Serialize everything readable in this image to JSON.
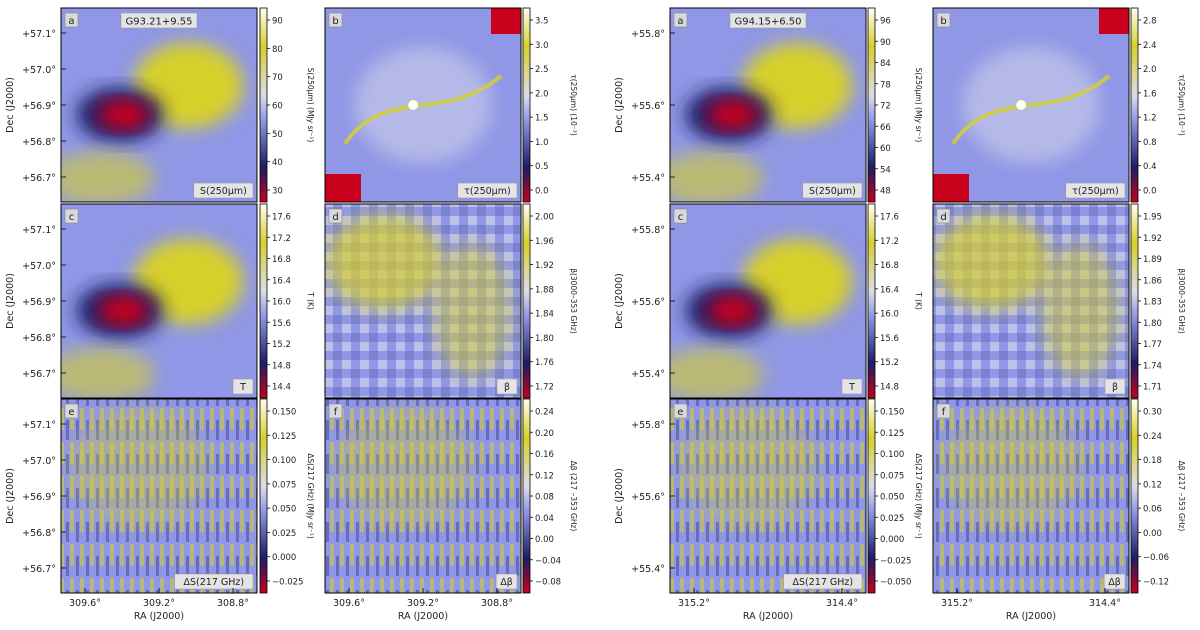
{
  "colors": {
    "low": "#c8001c",
    "dark": "#1a1d66",
    "mid": "#8f97e6",
    "pale": "#dcdcea",
    "high": "#d7d02a",
    "top": "#fffff2"
  },
  "chart_data": [
    {
      "type": "heatmap",
      "field": "G93.21+9.55",
      "xlabel": "RA (J2000)",
      "xticks": [
        "309.6°",
        "309.2°",
        "308.8°"
      ],
      "ylabel": "Dec (J2000)",
      "yticks": [
        "+57.1°",
        "+57.0°",
        "+56.9°",
        "+56.8°",
        "+56.7°"
      ],
      "panels": [
        {
          "letter": "a",
          "tag": "S(250μm)",
          "cbar_label": "S(250μm) (MJy sr⁻¹)",
          "cbar_ticks": [
            "90",
            "80",
            "70",
            "60",
            "50",
            "40",
            "30"
          ],
          "pattern": "blobs"
        },
        {
          "letter": "b",
          "tag": "τ(250μm)",
          "cbar_label": "τ(250μm) (10⁻³)",
          "cbar_ticks": [
            "3.5",
            "3.0",
            "2.5",
            "2.0",
            "1.5",
            "1.0",
            "0.5",
            "0.0"
          ],
          "pattern": "filament"
        },
        {
          "letter": "c",
          "tag": "T",
          "cbar_label": "T (K)",
          "cbar_ticks": [
            "17.6",
            "17.2",
            "16.8",
            "16.4",
            "16.0",
            "15.6",
            "15.2",
            "14.8",
            "14.4"
          ],
          "pattern": "blobs"
        },
        {
          "letter": "d",
          "tag": "β",
          "cbar_label": "β(3000–353 GHz)",
          "cbar_ticks": [
            "2.00",
            "1.96",
            "1.92",
            "1.88",
            "1.84",
            "1.80",
            "1.76",
            "1.72"
          ],
          "pattern": "blocky"
        },
        {
          "letter": "e",
          "tag": "ΔS(217 GHz)",
          "cbar_label": "ΔS(217 GHz) (MJy sr⁻¹)",
          "cbar_ticks": [
            "0.150",
            "0.125",
            "0.100",
            "0.075",
            "0.050",
            "0.025",
            "0.000",
            "−0.025"
          ],
          "pattern": "stripes"
        },
        {
          "letter": "f",
          "tag": "Δβ",
          "cbar_label": "Δβ (217 –353 GHz)",
          "cbar_ticks": [
            "0.24",
            "0.20",
            "0.16",
            "0.12",
            "0.08",
            "0.04",
            "0.00",
            "−0.04",
            "−0.08"
          ],
          "pattern": "stripes"
        }
      ]
    },
    {
      "type": "heatmap",
      "field": "G94.15+6.50",
      "xlabel": "RA (J2000)",
      "xticks": [
        "315.2°",
        "314.4°"
      ],
      "ylabel": "Dec (J2000)",
      "yticks": [
        "+55.8°",
        "+55.6°",
        "+55.4°"
      ],
      "panels": [
        {
          "letter": "a",
          "tag": "S(250μm)",
          "cbar_label": "S(250μm) (MJy sr⁻¹)",
          "cbar_ticks": [
            "96",
            "90",
            "84",
            "78",
            "72",
            "66",
            "60",
            "54",
            "48"
          ],
          "pattern": "blobs"
        },
        {
          "letter": "b",
          "tag": "τ(250μm)",
          "cbar_label": "τ(250μm) (10⁻³)",
          "cbar_ticks": [
            "2.8",
            "2.4",
            "2.0",
            "1.6",
            "1.2",
            "0.8",
            "0.4",
            "0.0"
          ],
          "pattern": "filament"
        },
        {
          "letter": "c",
          "tag": "T",
          "cbar_label": "T (K)",
          "cbar_ticks": [
            "17.6",
            "17.2",
            "16.8",
            "16.4",
            "16.0",
            "15.6",
            "15.2",
            "14.8"
          ],
          "pattern": "blobs"
        },
        {
          "letter": "d",
          "tag": "β",
          "cbar_label": "β(3000–353 GHz)",
          "cbar_ticks": [
            "1.95",
            "1.92",
            "1.89",
            "1.86",
            "1.83",
            "1.80",
            "1.77",
            "1.74",
            "1.71"
          ],
          "pattern": "blocky"
        },
        {
          "letter": "e",
          "tag": "ΔS(217 GHz)",
          "cbar_label": "ΔS(217 GHz) (MJy sr⁻¹)",
          "cbar_ticks": [
            "0.150",
            "0.125",
            "0.100",
            "0.075",
            "0.050",
            "0.025",
            "0.000",
            "−0.025",
            "−0.050"
          ],
          "pattern": "stripes"
        },
        {
          "letter": "f",
          "tag": "Δβ",
          "cbar_label": "Δβ (217 –353 GHz)",
          "cbar_ticks": [
            "0.30",
            "0.24",
            "0.18",
            "0.12",
            "0.06",
            "0.00",
            "−0.06",
            "−0.12"
          ],
          "pattern": "stripes"
        }
      ]
    }
  ]
}
